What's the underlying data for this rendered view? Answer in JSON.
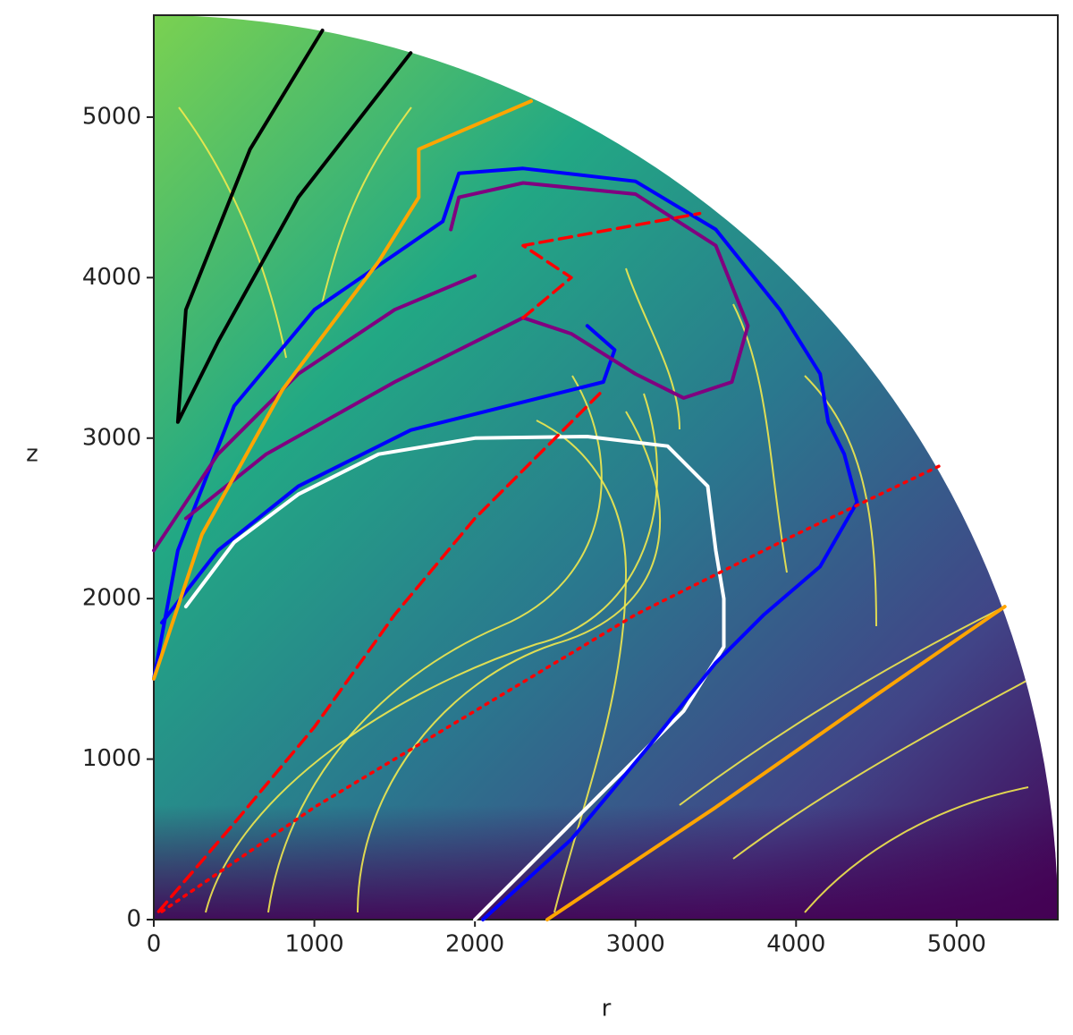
{
  "chart_data": {
    "type": "line",
    "xlabel": "r",
    "ylabel": "z",
    "xlim": [
      0,
      5630
    ],
    "ylim": [
      0,
      5635
    ],
    "xticks": [
      0,
      1000,
      2000,
      3000,
      4000,
      5000
    ],
    "yticks": [
      0,
      1000,
      2000,
      3000,
      4000,
      5000
    ],
    "series": [
      {
        "color": "#ffffff",
        "style": "solid",
        "x": [
          2000,
          2400,
          2900,
          3300,
          3550,
          3550,
          3500,
          3450,
          3200,
          2700,
          2000,
          1400,
          900,
          500,
          200
        ],
        "y": [
          0,
          400,
          900,
          1300,
          1700,
          2000,
          2300,
          2700,
          2950,
          3010,
          3000,
          2900,
          2650,
          2350,
          1950
        ]
      },
      {
        "color": "#0000ff",
        "style": "solid",
        "x": [
          2050,
          2600,
          3100,
          3500,
          3800,
          4150,
          4380,
          4300,
          4200,
          4150,
          3900,
          3500,
          3000,
          2300,
          1900,
          1800,
          1000,
          500,
          150,
          0
        ],
        "y": [
          0,
          500,
          1100,
          1600,
          1900,
          2200,
          2600,
          2900,
          3100,
          3400,
          3800,
          4300,
          4600,
          4680,
          4650,
          4350,
          3800,
          3200,
          2300,
          1500
        ]
      },
      {
        "color": "#0000ff",
        "style": "solid",
        "x": [
          50,
          400,
          900,
          1600,
          2400,
          2800,
          2870,
          2700
        ],
        "y": [
          1850,
          2300,
          2700,
          3050,
          3250,
          3350,
          3550,
          3700
        ]
      },
      {
        "color": "#800080",
        "style": "solid",
        "x": [
          0,
          400,
          900,
          1500,
          2000
        ],
        "y": [
          2300,
          2900,
          3400,
          3800,
          4010
        ]
      },
      {
        "color": "#800080",
        "style": "solid",
        "x": [
          200,
          700,
          1500,
          2300,
          2600,
          3000,
          3300,
          3600,
          3700,
          3500,
          3000,
          2300,
          1900,
          1850
        ],
        "y": [
          2500,
          2900,
          3350,
          3750,
          3650,
          3400,
          3250,
          3350,
          3700,
          4200,
          4520,
          4590,
          4500,
          4300
        ]
      },
      {
        "color": "#000000",
        "style": "solid",
        "x": [
          1050,
          600,
          200,
          150,
          400,
          900,
          1600
        ],
        "y": [
          5540,
          4800,
          3800,
          3100,
          3600,
          4500,
          5400
        ]
      },
      {
        "color": "#ffa500",
        "style": "solid",
        "x": [
          0,
          300,
          800,
          1400,
          1650,
          1650,
          2350
        ],
        "y": [
          1500,
          2400,
          3300,
          4100,
          4500,
          4800,
          5100
        ]
      },
      {
        "color": "#ffa500",
        "style": "solid",
        "x": [
          2450,
          3500,
          4500,
          5300
        ],
        "y": [
          0,
          700,
          1400,
          1950
        ]
      },
      {
        "color": "#ff0000",
        "style": "dashed",
        "x": [
          30,
          500,
          1000,
          1500,
          2000,
          2500,
          2800
        ],
        "y": [
          50,
          600,
          1200,
          1900,
          2500,
          3000,
          3300
        ]
      },
      {
        "color": "#ff0000",
        "style": "dashed",
        "x": [
          2300,
          2600,
          2300,
          3400
        ],
        "y": [
          3750,
          4000,
          4200,
          4400
        ]
      },
      {
        "color": "#ff0000",
        "style": "dotted",
        "x": [
          50,
          1000,
          2000,
          3000,
          4000,
          4900
        ],
        "y": [
          50,
          700,
          1300,
          1900,
          2400,
          2830
        ]
      }
    ]
  }
}
